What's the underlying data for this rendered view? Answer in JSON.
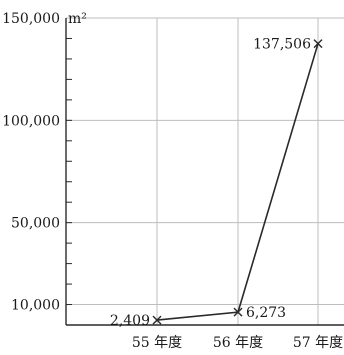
{
  "chart_data": {
    "type": "line",
    "title": "",
    "xlabel": "",
    "ylabel": "",
    "y_unit": "m²",
    "categories": [
      "55 年度",
      "56 年度",
      "57 年度"
    ],
    "series": [
      {
        "name": "",
        "values": [
          2409,
          6273,
          137506
        ],
        "labels": [
          "2,409",
          "6,273",
          "137,506"
        ]
      }
    ],
    "y_ticks": [
      {
        "value": 150000,
        "label": "150,000"
      },
      {
        "value": 100000,
        "label": "100,000"
      },
      {
        "value": 50000,
        "label": "50,000"
      },
      {
        "value": 10000,
        "label": "10,000"
      }
    ],
    "ylim": [
      0,
      150000
    ],
    "grid": true,
    "marker": "cross",
    "line_color": "#2a2a2a",
    "grid_color": "#bdbdbd"
  }
}
